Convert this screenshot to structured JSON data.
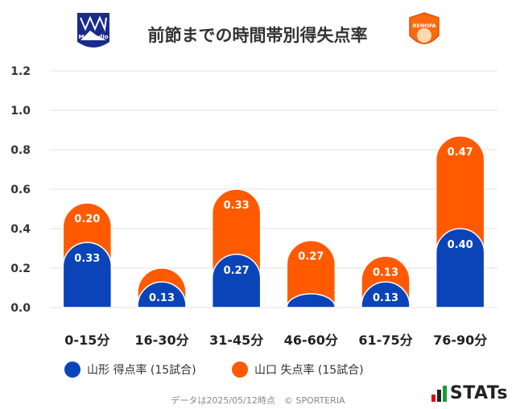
{
  "chart_data": {
    "type": "bar",
    "stacked": true,
    "title": "前節までの時間帯別得失点率",
    "categories": [
      "0-15分",
      "16-30分",
      "31-45分",
      "46-60分",
      "61-75分",
      "76-90分"
    ],
    "series": [
      {
        "name": "山形 得点率 (15試合)",
        "color": "#0a44b8",
        "values": [
          0.33,
          0.13,
          0.27,
          0.07,
          0.13,
          0.4
        ],
        "labels": [
          "0.33",
          "0.13",
          "0.27",
          "",
          "0.13",
          "0.40"
        ]
      },
      {
        "name": "山口 失点率 (15試合)",
        "color": "#ff5a00",
        "values": [
          0.2,
          0.07,
          0.33,
          0.27,
          0.13,
          0.47
        ],
        "labels": [
          "0.20",
          "",
          "0.33",
          "0.27",
          "0.13",
          "0.47"
        ]
      }
    ],
    "yticks": [
      "0.0",
      "0.2",
      "0.4",
      "0.6",
      "0.8",
      "1.0",
      "1.2"
    ],
    "ylim": [
      0,
      1.2
    ],
    "grid": true,
    "legend_position": "bottom"
  },
  "logos": {
    "left": "Montedio",
    "right": "RENOFA"
  },
  "footer": "データは2025/05/12時点　© SPORTERIA",
  "brand": "STATs"
}
